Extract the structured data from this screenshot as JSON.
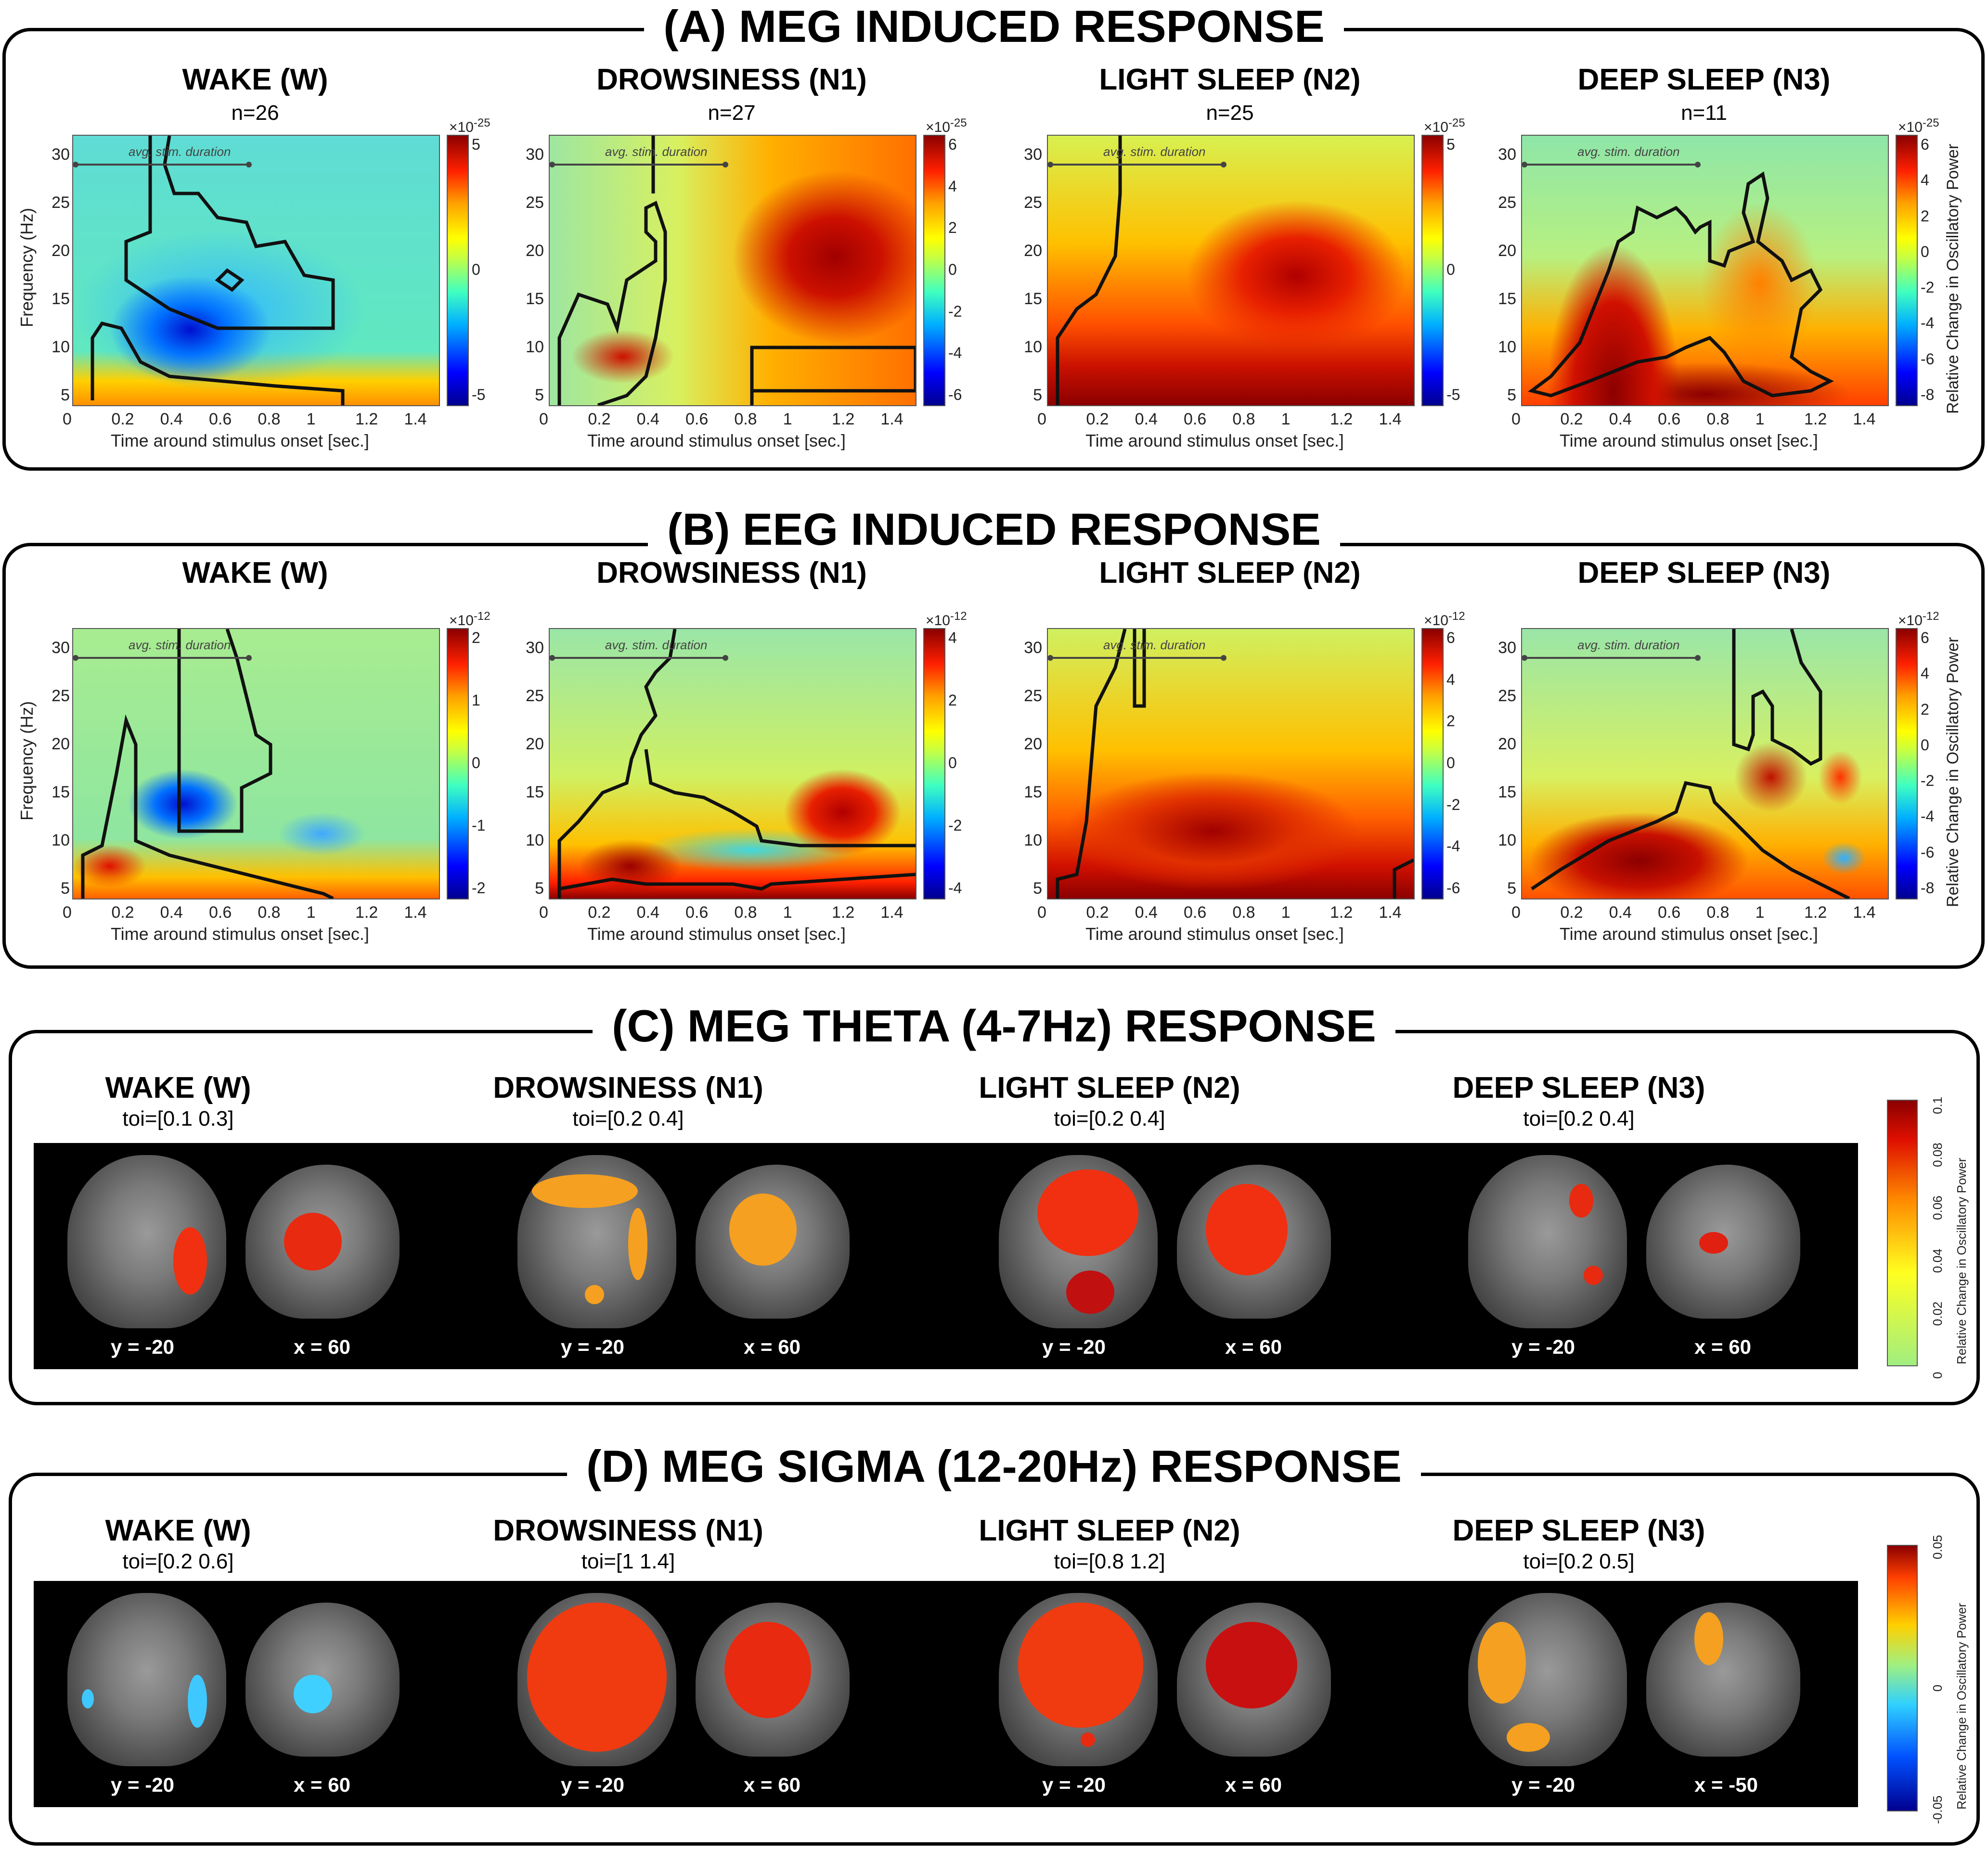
{
  "sections": {
    "a": {
      "title": "(A) MEG INDUCED RESPONSE"
    },
    "b": {
      "title": "(B) EEG INDUCED RESPONSE"
    },
    "c": {
      "title": "(C) MEG THETA (4-7Hz) RESPONSE"
    },
    "d": {
      "title": "(D) MEG SIGMA (12-20Hz) RESPONSE"
    }
  },
  "states": [
    "WAKE (W)",
    "DROWSINESS (N1)",
    "LIGHT SLEEP (N2)",
    "DEEP SLEEP (N3)"
  ],
  "meg_n": [
    "n=26",
    "n=27",
    "n=25",
    "n=11"
  ],
  "axes": {
    "ylabel": "Frequency (Hz)",
    "xlabel": "Time around stimulus onset [sec.]",
    "annotation": "avg. stim. duration",
    "xticks": [
      "0",
      "0.2",
      "0.4",
      "0.6",
      "0.8",
      "1",
      "1.2",
      "1.4"
    ],
    "yticks": [
      "30",
      "25",
      "20",
      "15",
      "10",
      "5"
    ]
  },
  "colorbar_label": "Relative Change in Oscillatory Power",
  "meg_colorbars": [
    {
      "exp": "×10",
      "sup": "-25",
      "ticks": [
        "5",
        "0",
        "-5"
      ]
    },
    {
      "exp": "×10",
      "sup": "-25",
      "ticks": [
        "6",
        "4",
        "2",
        "0",
        "-2",
        "-4",
        "-6"
      ]
    },
    {
      "exp": "×10",
      "sup": "-25",
      "ticks": [
        "5",
        "0",
        "-5"
      ]
    },
    {
      "exp": "×10",
      "sup": "-25",
      "ticks": [
        "6",
        "4",
        "2",
        "0",
        "-2",
        "-4",
        "-6",
        "-8"
      ]
    }
  ],
  "eeg_colorbars": [
    {
      "exp": "×10",
      "sup": "-12",
      "ticks": [
        "2",
        "1",
        "0",
        "-1",
        "-2"
      ]
    },
    {
      "exp": "×10",
      "sup": "-12",
      "ticks": [
        "4",
        "2",
        "0",
        "-2",
        "-4"
      ]
    },
    {
      "exp": "×10",
      "sup": "-12",
      "ticks": [
        "6",
        "4",
        "2",
        "0",
        "-2",
        "-4",
        "-6"
      ]
    },
    {
      "exp": "×10",
      "sup": "-12",
      "ticks": [
        "6",
        "4",
        "2",
        "0",
        "-2",
        "-4",
        "-6",
        "-8"
      ]
    }
  ],
  "theta": {
    "toi": [
      "toi=[0.1 0.3]",
      "toi=[0.2 0.4]",
      "toi=[0.2 0.4]",
      "toi=[0.2 0.4]"
    ],
    "coords": [
      [
        "y = -20",
        "x = 60"
      ],
      [
        "y = -20",
        "x = 60"
      ],
      [
        "y = -20",
        "x = 60"
      ],
      [
        "y = -20",
        "x = 60"
      ]
    ],
    "cbar_ticks": [
      "0.1",
      "0.08",
      "0.06",
      "0.04",
      "0.02",
      "0"
    ]
  },
  "sigma": {
    "toi": [
      "toi=[0.2 0.6]",
      "toi=[1 1.4]",
      "toi=[0.8 1.2]",
      "toi=[0.2 0.5]"
    ],
    "coords": [
      [
        "y = -20",
        "x = 60"
      ],
      [
        "y = -20",
        "x = 60"
      ],
      [
        "y = -20",
        "x = 60"
      ],
      [
        "y = -20",
        "x = -50"
      ]
    ],
    "cbar_ticks": [
      "0.05",
      "0",
      "-0.05"
    ]
  },
  "colors": {
    "hot": "#8b0000",
    "warm": "#ff3c00",
    "neutral": "#a8f060",
    "cool": "#3fc8ff",
    "cold": "#0000c8"
  }
}
